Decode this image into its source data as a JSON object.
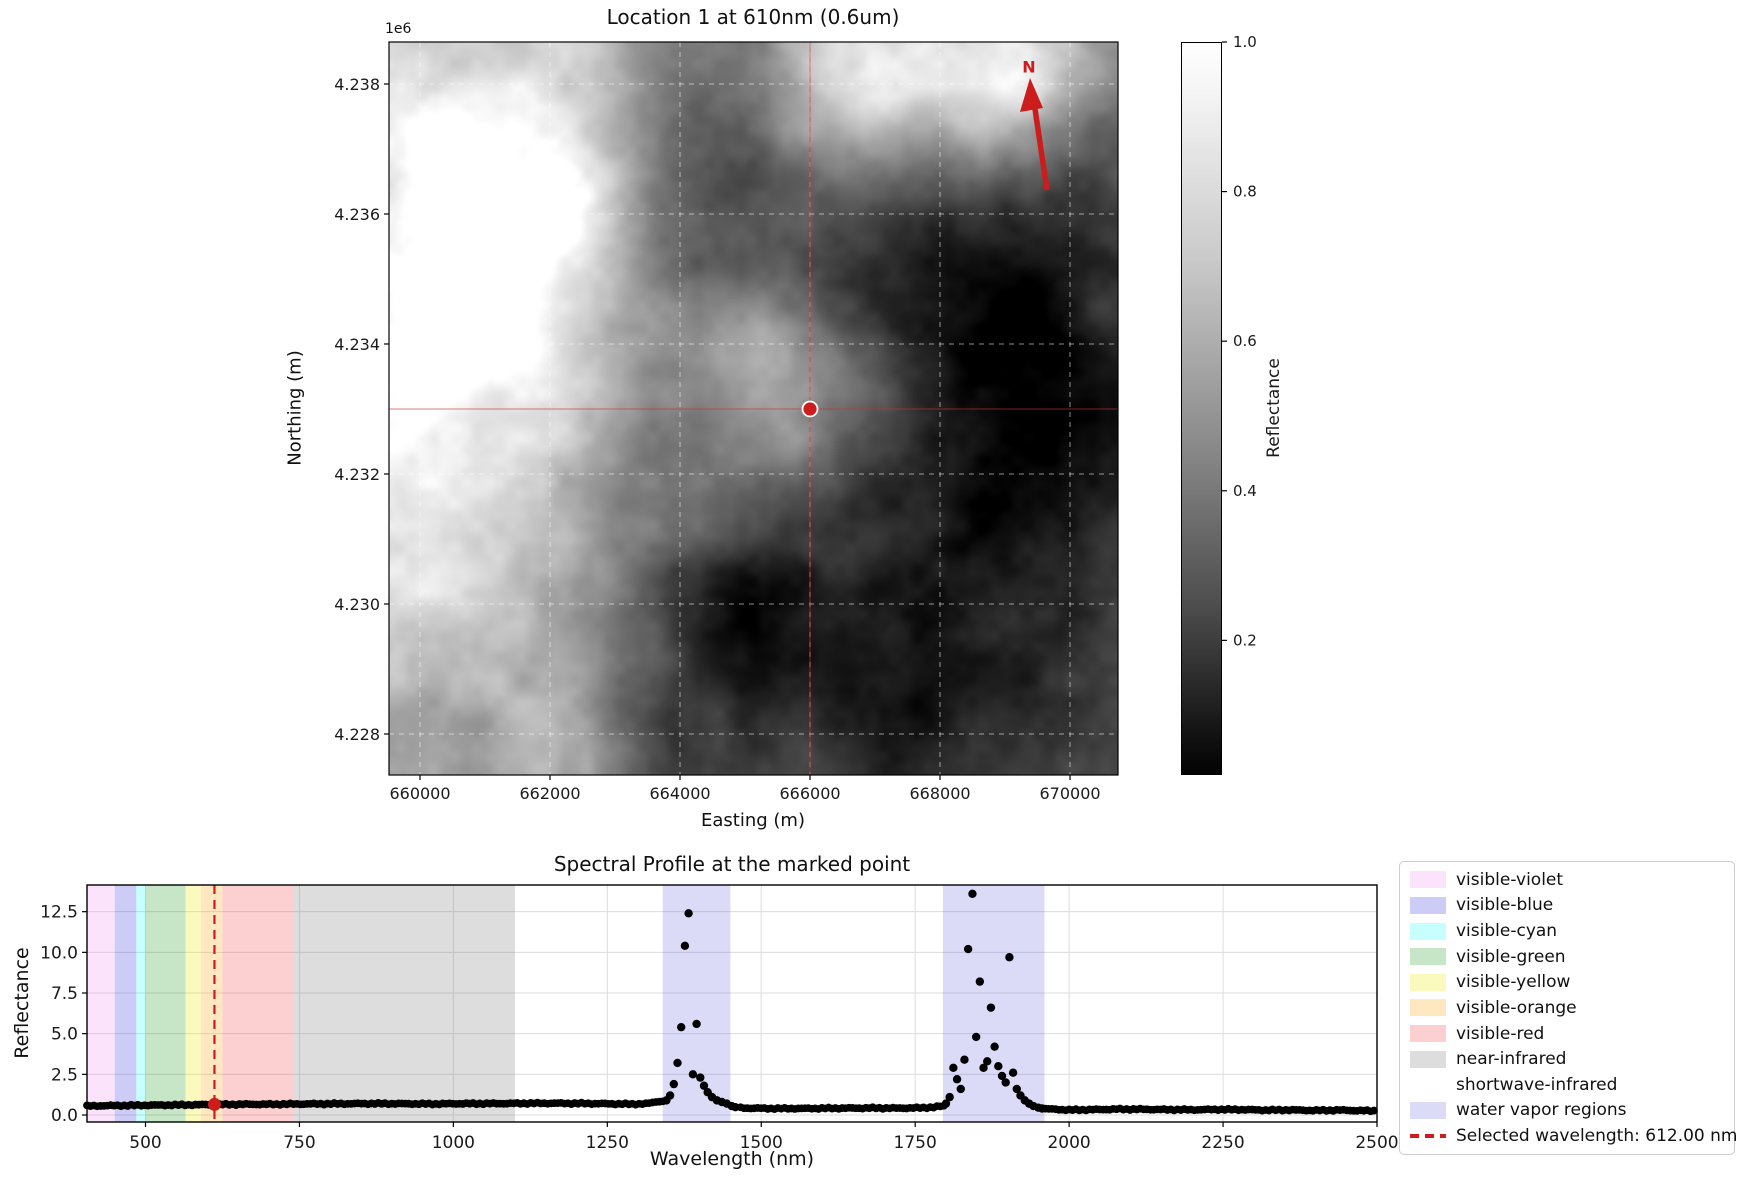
{
  "colors": {
    "accent_red": "#cc1c1c",
    "crosshair_red": "#cc3333",
    "grid_gray": "#dcdcdc",
    "map_grid_white": "#ffffff",
    "text": "#1a1a1a",
    "point_black": "#000000"
  },
  "map_panel": {
    "title": "Location 1 at 610nm (0.6um)",
    "offset_label": "1e6",
    "xlabel": "Easting (m)",
    "ylabel": "Northing (m)",
    "north_label": "N",
    "x_tick_labels": [
      "660000",
      "662000",
      "664000",
      "666000",
      "668000",
      "670000"
    ],
    "x_tick_values": [
      660000,
      662000,
      664000,
      666000,
      668000,
      670000
    ],
    "y_tick_labels": [
      "4.238",
      "4.236",
      "4.234",
      "4.232",
      "4.230",
      "4.228"
    ],
    "y_tick_values": [
      4238000,
      4236000,
      4234000,
      4232000,
      4230000,
      4228000
    ],
    "x_range": [
      659523,
      670738
    ],
    "y_range": [
      4227369,
      4238646
    ],
    "marker": {
      "easting": 666000,
      "northing": 4233000
    },
    "colorbar": {
      "label": "Reflectance",
      "tick_labels": [
        "1.0",
        "0.8",
        "0.6",
        "0.4",
        "0.2"
      ],
      "tick_values": [
        1.0,
        0.8,
        0.6,
        0.4,
        0.2
      ],
      "vmin": 0.02,
      "vmax": 1.0
    }
  },
  "chart_data": {
    "type": "scatter",
    "title": "Spectral Profile at the marked point",
    "xlabel": "Wavelength (nm)",
    "ylabel": "Reflectance",
    "xlim": [
      405,
      2500
    ],
    "ylim": [
      -0.43,
      14.14
    ],
    "grid": true,
    "x_tick_labels": [
      "500",
      "750",
      "1000",
      "1250",
      "1500",
      "1750",
      "2000",
      "2250",
      "2500"
    ],
    "x_tick_values": [
      500,
      750,
      1000,
      1250,
      1500,
      1750,
      2000,
      2250,
      2500
    ],
    "y_tick_labels": [
      "0.0",
      "2.5",
      "5.0",
      "7.5",
      "10.0",
      "12.5"
    ],
    "y_tick_values": [
      0.0,
      2.5,
      5.0,
      7.5,
      10.0,
      12.5
    ],
    "bands": [
      {
        "name": "visible-violet",
        "range": [
          380,
          450
        ],
        "color": "rgba(238,130,238,0.22)"
      },
      {
        "name": "visible-blue",
        "range": [
          450,
          485
        ],
        "color": "rgba(50,50,220,0.25)"
      },
      {
        "name": "visible-cyan",
        "range": [
          485,
          500
        ],
        "color": "rgba(0,255,255,0.22)"
      },
      {
        "name": "visible-green",
        "range": [
          500,
          565
        ],
        "color": "rgba(0,140,0,0.22)"
      },
      {
        "name": "visible-yellow",
        "range": [
          565,
          590
        ],
        "color": "rgba(235,235,0,0.25)"
      },
      {
        "name": "visible-orange",
        "range": [
          590,
          625
        ],
        "color": "rgba(255,165,0,0.25)"
      },
      {
        "name": "visible-red",
        "range": [
          625,
          740
        ],
        "color": "rgba(240,40,40,0.22)"
      },
      {
        "name": "near-infrared",
        "range": [
          740,
          1100
        ],
        "color": "rgba(120,120,120,0.25)"
      },
      {
        "name": "shortwave-infrared",
        "range": [
          1100,
          2500
        ],
        "color": "rgba(255,255,255,0)"
      }
    ],
    "water_vapor_regions": [
      [
        1340,
        1450
      ],
      [
        1795,
        1960
      ]
    ],
    "water_vapor_color": "rgba(90,90,225,0.22)",
    "selected_point": {
      "wavelength": 612,
      "reflectance": 0.65,
      "color": "#cc1c1c"
    },
    "series": [
      {
        "name": "spectrum",
        "color": "#000000",
        "sample_step_nm": 5.5,
        "skip_ranges": [
          [
            1341,
            1461
          ],
          [
            1797,
            1958
          ]
        ],
        "baseline_anchors": [
          [
            405,
            0.55
          ],
          [
            430,
            0.57
          ],
          [
            455,
            0.58
          ],
          [
            480,
            0.59
          ],
          [
            505,
            0.6
          ],
          [
            530,
            0.61
          ],
          [
            560,
            0.62
          ],
          [
            590,
            0.63
          ],
          [
            612,
            0.65
          ],
          [
            640,
            0.65
          ],
          [
            670,
            0.66
          ],
          [
            700,
            0.66
          ],
          [
            730,
            0.67
          ],
          [
            770,
            0.68
          ],
          [
            810,
            0.69
          ],
          [
            850,
            0.7
          ],
          [
            890,
            0.7
          ],
          [
            930,
            0.69
          ],
          [
            970,
            0.68
          ],
          [
            1010,
            0.7
          ],
          [
            1050,
            0.7
          ],
          [
            1090,
            0.71
          ],
          [
            1130,
            0.72
          ],
          [
            1170,
            0.72
          ],
          [
            1210,
            0.71
          ],
          [
            1250,
            0.69
          ],
          [
            1290,
            0.67
          ],
          [
            1315,
            0.7
          ],
          [
            1335,
            0.85
          ],
          [
            1462,
            0.45
          ],
          [
            1480,
            0.42
          ],
          [
            1520,
            0.4
          ],
          [
            1560,
            0.4
          ],
          [
            1600,
            0.41
          ],
          [
            1640,
            0.42
          ],
          [
            1680,
            0.43
          ],
          [
            1720,
            0.42
          ],
          [
            1760,
            0.44
          ],
          [
            1780,
            0.48
          ],
          [
            1795,
            0.55
          ],
          [
            1960,
            0.38
          ],
          [
            2000,
            0.31
          ],
          [
            2040,
            0.33
          ],
          [
            2080,
            0.36
          ],
          [
            2120,
            0.35
          ],
          [
            2160,
            0.33
          ],
          [
            2200,
            0.32
          ],
          [
            2240,
            0.34
          ],
          [
            2280,
            0.33
          ],
          [
            2320,
            0.3
          ],
          [
            2360,
            0.31
          ],
          [
            2400,
            0.28
          ],
          [
            2440,
            0.3
          ],
          [
            2470,
            0.27
          ],
          [
            2500,
            0.26
          ]
        ],
        "spike_points": [
          [
            1346,
            0.9
          ],
          [
            1352,
            1.2
          ],
          [
            1358,
            1.9
          ],
          [
            1364,
            3.2
          ],
          [
            1370,
            5.4
          ],
          [
            1376,
            10.4
          ],
          [
            1382,
            12.4
          ],
          [
            1389,
            2.5
          ],
          [
            1395,
            5.6
          ],
          [
            1401,
            2.3
          ],
          [
            1407,
            1.8
          ],
          [
            1413,
            1.4
          ],
          [
            1420,
            1.1
          ],
          [
            1428,
            0.9
          ],
          [
            1436,
            0.8
          ],
          [
            1444,
            0.7
          ],
          [
            1452,
            0.55
          ],
          [
            1458,
            0.48
          ],
          [
            1800,
            0.7
          ],
          [
            1806,
            1.1
          ],
          [
            1812,
            2.9
          ],
          [
            1818,
            2.2
          ],
          [
            1824,
            1.6
          ],
          [
            1830,
            3.4
          ],
          [
            1836,
            10.2
          ],
          [
            1843,
            13.6
          ],
          [
            1849,
            4.8
          ],
          [
            1855,
            8.2
          ],
          [
            1861,
            2.9
          ],
          [
            1867,
            3.3
          ],
          [
            1873,
            6.6
          ],
          [
            1879,
            4.2
          ],
          [
            1885,
            3.0
          ],
          [
            1891,
            2.4
          ],
          [
            1897,
            2.0
          ],
          [
            1903,
            9.7
          ],
          [
            1909,
            2.6
          ],
          [
            1915,
            1.6
          ],
          [
            1921,
            1.2
          ],
          [
            1928,
            0.9
          ],
          [
            1935,
            0.7
          ],
          [
            1942,
            0.55
          ],
          [
            1950,
            0.45
          ],
          [
            1956,
            0.4
          ]
        ]
      }
    ],
    "legend": [
      {
        "label": "visible-violet",
        "swatch": "rgba(238,130,238,0.22)",
        "type": "patch"
      },
      {
        "label": "visible-blue",
        "swatch": "rgba(50,50,220,0.25)",
        "type": "patch"
      },
      {
        "label": "visible-cyan",
        "swatch": "rgba(0,255,255,0.22)",
        "type": "patch"
      },
      {
        "label": "visible-green",
        "swatch": "rgba(0,140,0,0.22)",
        "type": "patch"
      },
      {
        "label": "visible-yellow",
        "swatch": "rgba(235,235,0,0.25)",
        "type": "patch"
      },
      {
        "label": "visible-orange",
        "swatch": "rgba(255,165,0,0.25)",
        "type": "patch"
      },
      {
        "label": "visible-red",
        "swatch": "rgba(240,40,40,0.22)",
        "type": "patch"
      },
      {
        "label": "near-infrared",
        "swatch": "rgba(120,120,120,0.25)",
        "type": "patch"
      },
      {
        "label": "shortwave-infrared",
        "swatch": "rgba(255,255,255,0)",
        "type": "patch"
      },
      {
        "label": "water vapor regions",
        "swatch": "rgba(90,90,225,0.22)",
        "type": "patch"
      },
      {
        "label": "Selected wavelength: 612.00 nm",
        "swatch": "#cc1c1c",
        "type": "dashed-line"
      }
    ]
  }
}
